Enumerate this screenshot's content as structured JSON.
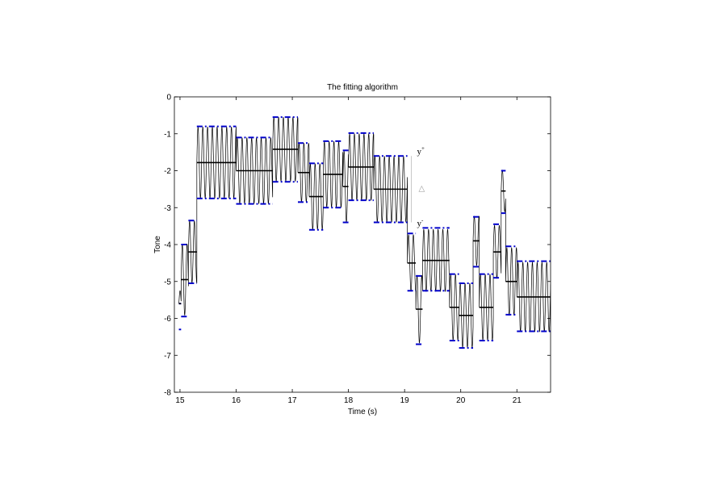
{
  "chart_data": {
    "type": "line",
    "title": "The fitting algorithm",
    "xlabel": "Time (s)",
    "ylabel": "Tone",
    "xlim": [
      14.9,
      21.6
    ],
    "ylim": [
      -8,
      0
    ],
    "xticks": [
      15,
      16,
      17,
      18,
      19,
      20,
      21
    ],
    "xtick_labels": [
      "15",
      "16",
      "17",
      "18",
      "19",
      "20",
      "21"
    ],
    "yticks": [
      0,
      -1,
      -2,
      -3,
      -4,
      -5,
      -6,
      -7,
      -8
    ],
    "ytick_labels": [
      "0",
      "-1",
      "-2",
      "-3",
      "-4",
      "-5",
      "-6",
      "-7",
      "-8"
    ],
    "grid": false,
    "series_colors": {
      "signal": "#000000",
      "segment_mean": "#000000",
      "band": "#0000cc"
    },
    "segments": [
      {
        "x0": 14.98,
        "x1": 15.02,
        "mean": -5.6,
        "upper": -5.6,
        "lower": -6.3
      },
      {
        "x0": 15.02,
        "x1": 15.15,
        "mean": -4.95,
        "upper": -4.0,
        "lower": -5.95
      },
      {
        "x0": 15.15,
        "x1": 15.3,
        "mean": -4.2,
        "upper": -3.35,
        "lower": -5.05
      },
      {
        "x0": 15.3,
        "x1": 16.0,
        "mean": -1.78,
        "upper": -0.8,
        "lower": -2.75
      },
      {
        "x0": 16.0,
        "x1": 16.65,
        "mean": -2.0,
        "upper": -1.1,
        "lower": -2.9
      },
      {
        "x0": 16.65,
        "x1": 17.1,
        "mean": -1.42,
        "upper": -0.55,
        "lower": -2.3
      },
      {
        "x0": 17.1,
        "x1": 17.3,
        "mean": -2.05,
        "upper": -1.25,
        "lower": -2.85
      },
      {
        "x0": 17.3,
        "x1": 17.55,
        "mean": -2.7,
        "upper": -1.8,
        "lower": -3.6
      },
      {
        "x0": 17.55,
        "x1": 17.9,
        "mean": -2.1,
        "upper": -1.2,
        "lower": -3.0
      },
      {
        "x0": 17.9,
        "x1": 18.0,
        "mean": -2.43,
        "upper": -1.45,
        "lower": -3.4
      },
      {
        "x0": 18.0,
        "x1": 18.45,
        "mean": -1.9,
        "upper": -0.98,
        "lower": -2.8
      },
      {
        "x0": 18.45,
        "x1": 19.05,
        "mean": -2.5,
        "upper": -1.6,
        "lower": -3.4
      },
      {
        "x0": 19.05,
        "x1": 19.2,
        "mean": -4.5,
        "upper": -3.7,
        "lower": -5.25
      },
      {
        "x0": 19.2,
        "x1": 19.32,
        "mean": -5.75,
        "upper": -4.85,
        "lower": -6.7
      },
      {
        "x0": 19.32,
        "x1": 19.8,
        "mean": -4.43,
        "upper": -3.55,
        "lower": -5.25
      },
      {
        "x0": 19.8,
        "x1": 19.97,
        "mean": -5.7,
        "upper": -4.8,
        "lower": -6.6
      },
      {
        "x0": 19.97,
        "x1": 20.22,
        "mean": -5.92,
        "upper": -5.05,
        "lower": -6.8
      },
      {
        "x0": 20.22,
        "x1": 20.33,
        "mean": -3.9,
        "upper": -3.25,
        "lower": -4.6
      },
      {
        "x0": 20.33,
        "x1": 20.58,
        "mean": -5.7,
        "upper": -4.8,
        "lower": -6.6
      },
      {
        "x0": 20.58,
        "x1": 20.72,
        "mean": -4.2,
        "upper": -3.45,
        "lower": -4.9
      },
      {
        "x0": 20.72,
        "x1": 20.8,
        "mean": -2.55,
        "upper": -2.0,
        "lower": -3.15
      },
      {
        "x0": 20.8,
        "x1": 21.0,
        "mean": -5.0,
        "upper": -4.05,
        "lower": -5.9
      },
      {
        "x0": 21.0,
        "x1": 21.6,
        "mean": -5.42,
        "upper": -4.45,
        "lower": -6.35
      }
    ],
    "annotations": [
      {
        "text": "y",
        "superscript": "+",
        "x": 19.22,
        "y": -1.55
      },
      {
        "text": "△",
        "superscript": "",
        "x": 19.25,
        "y": -2.55
      },
      {
        "text": "y",
        "superscript": "-",
        "x": 19.22,
        "y": -3.5
      }
    ]
  }
}
